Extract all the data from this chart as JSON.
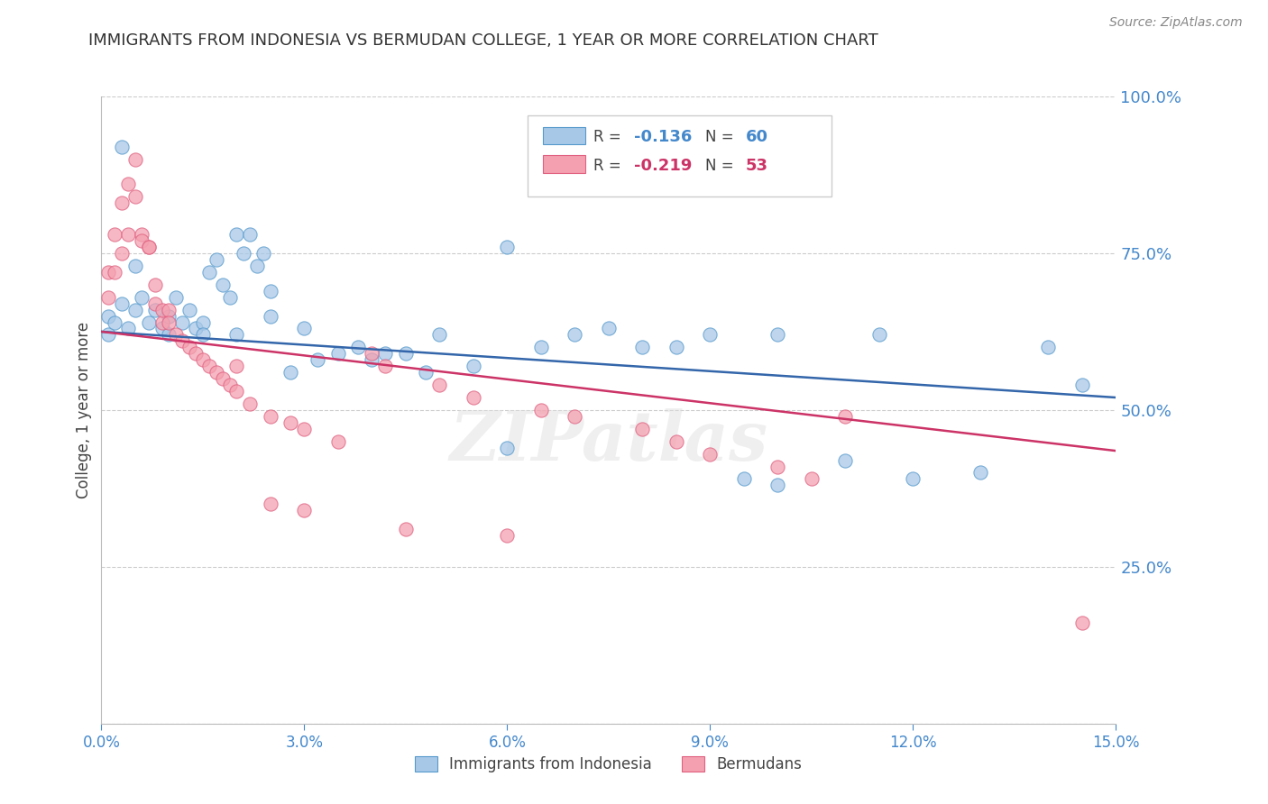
{
  "title": "IMMIGRANTS FROM INDONESIA VS BERMUDAN COLLEGE, 1 YEAR OR MORE CORRELATION CHART",
  "source": "Source: ZipAtlas.com",
  "ylabel": "College, 1 year or more",
  "xlim": [
    0.0,
    0.15
  ],
  "ylim": [
    0.0,
    1.0
  ],
  "blue_color": "#a8c8e8",
  "pink_color": "#f4a0b0",
  "blue_edge_color": "#5599cc",
  "pink_edge_color": "#e06080",
  "blue_line_color": "#3366aa",
  "pink_line_color": "#cc3366",
  "legend_label_blue": "Immigrants from Indonesia",
  "legend_label_pink": "Bermudans",
  "watermark": "ZIPatlas",
  "right_axis_color": "#4488cc",
  "grid_color": "#cccccc",
  "blue_x": [
    0.001,
    0.001,
    0.002,
    0.003,
    0.004,
    0.005,
    0.006,
    0.007,
    0.008,
    0.009,
    0.01,
    0.011,
    0.012,
    0.013,
    0.014,
    0.015,
    0.016,
    0.017,
    0.018,
    0.019,
    0.02,
    0.021,
    0.022,
    0.023,
    0.024,
    0.025,
    0.003,
    0.005,
    0.01,
    0.015,
    0.02,
    0.028,
    0.032,
    0.038,
    0.04,
    0.045,
    0.048,
    0.05,
    0.055,
    0.06,
    0.065,
    0.07,
    0.08,
    0.085,
    0.095,
    0.1,
    0.11,
    0.12,
    0.13,
    0.14,
    0.025,
    0.03,
    0.035,
    0.042,
    0.06,
    0.075,
    0.09,
    0.1,
    0.115,
    0.145
  ],
  "blue_y": [
    0.62,
    0.65,
    0.64,
    0.67,
    0.63,
    0.66,
    0.68,
    0.64,
    0.66,
    0.63,
    0.65,
    0.68,
    0.64,
    0.66,
    0.63,
    0.64,
    0.72,
    0.74,
    0.7,
    0.68,
    0.78,
    0.75,
    0.78,
    0.73,
    0.75,
    0.69,
    0.92,
    0.73,
    0.62,
    0.62,
    0.62,
    0.56,
    0.58,
    0.6,
    0.58,
    0.59,
    0.56,
    0.62,
    0.57,
    0.44,
    0.6,
    0.62,
    0.6,
    0.6,
    0.39,
    0.38,
    0.42,
    0.39,
    0.4,
    0.6,
    0.65,
    0.63,
    0.59,
    0.59,
    0.76,
    0.63,
    0.62,
    0.62,
    0.62,
    0.54
  ],
  "pink_x": [
    0.001,
    0.001,
    0.002,
    0.002,
    0.003,
    0.003,
    0.004,
    0.004,
    0.005,
    0.005,
    0.006,
    0.006,
    0.007,
    0.007,
    0.008,
    0.008,
    0.009,
    0.009,
    0.01,
    0.01,
    0.011,
    0.012,
    0.013,
    0.014,
    0.015,
    0.016,
    0.017,
    0.018,
    0.019,
    0.02,
    0.022,
    0.025,
    0.028,
    0.03,
    0.035,
    0.04,
    0.042,
    0.05,
    0.055,
    0.065,
    0.07,
    0.08,
    0.085,
    0.09,
    0.1,
    0.105,
    0.02,
    0.025,
    0.03,
    0.045,
    0.06,
    0.11,
    0.145
  ],
  "pink_y": [
    0.68,
    0.72,
    0.72,
    0.78,
    0.75,
    0.83,
    0.78,
    0.86,
    0.84,
    0.9,
    0.78,
    0.77,
    0.76,
    0.76,
    0.67,
    0.7,
    0.64,
    0.66,
    0.66,
    0.64,
    0.62,
    0.61,
    0.6,
    0.59,
    0.58,
    0.57,
    0.56,
    0.55,
    0.54,
    0.53,
    0.51,
    0.49,
    0.48,
    0.47,
    0.45,
    0.59,
    0.57,
    0.54,
    0.52,
    0.5,
    0.49,
    0.47,
    0.45,
    0.43,
    0.41,
    0.39,
    0.57,
    0.35,
    0.34,
    0.31,
    0.3,
    0.49,
    0.16
  ],
  "blue_trend_x": [
    0.0,
    0.15
  ],
  "blue_trend_y": [
    0.625,
    0.52
  ],
  "pink_trend_x": [
    0.0,
    0.15
  ],
  "pink_trend_y": [
    0.625,
    0.435
  ]
}
